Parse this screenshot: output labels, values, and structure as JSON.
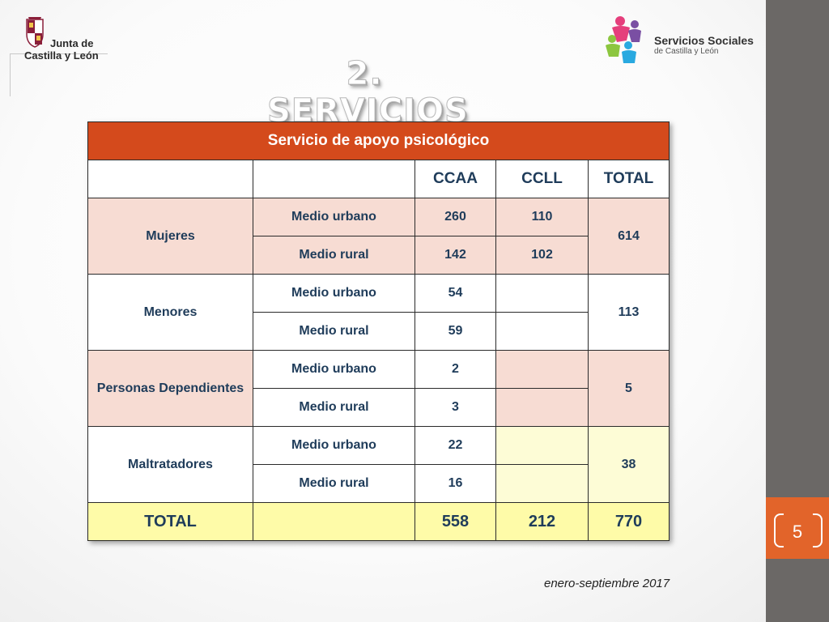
{
  "header": {
    "left_logo": {
      "line1": "Junta de",
      "line2": "Castilla y León"
    },
    "right_logo": {
      "title": "Servicios Sociales",
      "subtitle": "de Castilla y León"
    }
  },
  "slide_title": "2. SERVICIOS",
  "table": {
    "title": "Servicio de apoyo psicológico",
    "columns": [
      "CCAA",
      "CCLL",
      "TOTAL"
    ],
    "groups": [
      {
        "category": "Mujeres",
        "rows": [
          {
            "medio": "Medio urbano",
            "ccaa": "260",
            "ccll": "110"
          },
          {
            "medio": "Medio rural",
            "ccaa": "142",
            "ccll": "102"
          }
        ],
        "total": "614"
      },
      {
        "category": "Menores",
        "rows": [
          {
            "medio": "Medio urbano",
            "ccaa": "54",
            "ccll": ""
          },
          {
            "medio": "Medio rural",
            "ccaa": "59",
            "ccll": ""
          }
        ],
        "total": "113"
      },
      {
        "category": "Personas Dependientes",
        "rows": [
          {
            "medio": "Medio urbano",
            "ccaa": "2",
            "ccll": ""
          },
          {
            "medio": "Medio rural",
            "ccaa": "3",
            "ccll": ""
          }
        ],
        "total": "5"
      },
      {
        "category": "Maltratadores",
        "rows": [
          {
            "medio": "Medio urbano",
            "ccaa": "22",
            "ccll": ""
          },
          {
            "medio": "Medio rural",
            "ccaa": "16",
            "ccll": ""
          }
        ],
        "total": "38"
      }
    ],
    "total_row": {
      "label": "TOTAL",
      "ccaa": "558",
      "ccll": "212",
      "total": "770"
    }
  },
  "footer": {
    "date": "enero-septiembre 2017"
  },
  "page_number": "5",
  "colors": {
    "header_orange": "#d44a1c",
    "row_pink": "#f7dcd3",
    "row_yellow": "#fdfcd6",
    "total_yellow": "#fefba8",
    "text_navy": "#1f3c5a",
    "sidebar_gray": "#6b6866",
    "page_box_orange": "#e2642a"
  },
  "icons": [
    "coat-of-arms-icon",
    "servicios-sociales-people-icon"
  ]
}
